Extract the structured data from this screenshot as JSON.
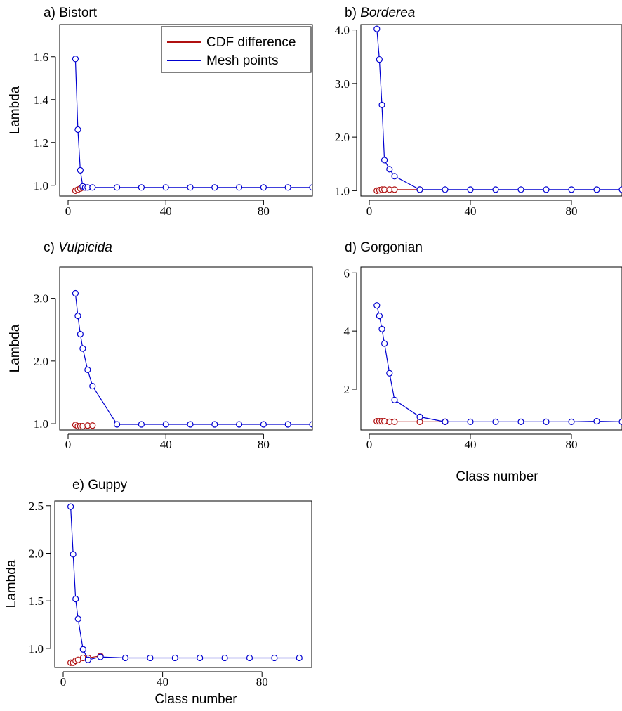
{
  "colors": {
    "cdf": "#b01010",
    "mesh": "#0000d0"
  },
  "legend": {
    "cdf_label": "CDF difference",
    "mesh_label": "Mesh points",
    "placement": "top-right of panel a"
  },
  "chart_data": [
    {
      "type": "line",
      "title_prefix": "a) ",
      "title_main": "Bistort",
      "title_italic": false,
      "ylabel": "Lambda",
      "xlabel": "",
      "xlim": [
        0,
        100
      ],
      "ylim": [
        0.95,
        1.75
      ],
      "xticks": [
        0,
        40,
        80
      ],
      "xtick_labels": [
        "0",
        "40",
        "80"
      ],
      "yticks": [
        1.0,
        1.2,
        1.4,
        1.6
      ],
      "ytick_labels": [
        "1.0",
        "1.2",
        "1.4",
        "1.6"
      ],
      "series": [
        {
          "name": "CDF difference",
          "x": [
            3,
            4,
            5,
            6,
            7
          ],
          "y": [
            0.975,
            0.98,
            0.985,
            0.99,
            0.99
          ]
        },
        {
          "name": "Mesh points",
          "x": [
            3,
            4,
            5,
            6,
            7,
            8,
            10,
            20,
            30,
            40,
            50,
            60,
            70,
            80,
            90,
            100
          ],
          "y": [
            1.59,
            1.26,
            1.07,
            0.995,
            0.99,
            0.99,
            0.99,
            0.99,
            0.99,
            0.99,
            0.99,
            0.99,
            0.99,
            0.99,
            0.99,
            0.99
          ]
        }
      ]
    },
    {
      "type": "line",
      "title_prefix": "b) ",
      "title_main": "Borderea",
      "title_italic": true,
      "ylabel": "",
      "xlabel": "",
      "xlim": [
        0,
        100
      ],
      "ylim": [
        0.9,
        4.1
      ],
      "xticks": [
        0,
        40,
        80
      ],
      "xtick_labels": [
        "0",
        "40",
        "80"
      ],
      "yticks": [
        1.0,
        2.0,
        3.0,
        4.0
      ],
      "ytick_labels": [
        "1.0",
        "2.0",
        "3.0",
        "4.0"
      ],
      "series": [
        {
          "name": "CDF difference",
          "x": [
            3,
            4,
            5,
            6,
            8,
            10,
            20
          ],
          "y": [
            1.0,
            1.01,
            1.02,
            1.02,
            1.02,
            1.02,
            1.02
          ]
        },
        {
          "name": "Mesh points",
          "x": [
            3,
            4,
            5,
            6,
            8,
            10,
            20,
            30,
            40,
            50,
            60,
            70,
            80,
            90,
            100
          ],
          "y": [
            4.02,
            3.45,
            2.6,
            1.57,
            1.4,
            1.27,
            1.02,
            1.02,
            1.02,
            1.02,
            1.02,
            1.02,
            1.02,
            1.02,
            1.02
          ]
        }
      ]
    },
    {
      "type": "line",
      "title_prefix": "c) ",
      "title_main": "Vulpicida",
      "title_italic": true,
      "ylabel": "Lambda",
      "xlabel": "",
      "xlim": [
        0,
        100
      ],
      "ylim": [
        0.9,
        3.5
      ],
      "xticks": [
        0,
        40,
        80
      ],
      "xtick_labels": [
        "0",
        "40",
        "80"
      ],
      "yticks": [
        1.0,
        2.0,
        3.0
      ],
      "ytick_labels": [
        "1.0",
        "2.0",
        "3.0"
      ],
      "series": [
        {
          "name": "CDF difference",
          "x": [
            3,
            4,
            5,
            6,
            8,
            10
          ],
          "y": [
            0.98,
            0.96,
            0.96,
            0.96,
            0.97,
            0.97
          ]
        },
        {
          "name": "Mesh points",
          "x": [
            3,
            4,
            5,
            6,
            8,
            10,
            20,
            30,
            40,
            50,
            60,
            70,
            80,
            90,
            100
          ],
          "y": [
            3.08,
            2.72,
            2.43,
            2.2,
            1.86,
            1.6,
            0.99,
            0.99,
            0.99,
            0.99,
            0.99,
            0.99,
            0.99,
            0.99,
            0.99
          ]
        }
      ]
    },
    {
      "type": "line",
      "title_prefix": "d) ",
      "title_main": "Gorgonian",
      "title_italic": false,
      "ylabel": "",
      "xlabel": "Class number",
      "xlim": [
        0,
        100
      ],
      "ylim": [
        0.6,
        6.2
      ],
      "xticks": [
        0,
        40,
        80
      ],
      "xtick_labels": [
        "0",
        "40",
        "80"
      ],
      "yticks": [
        2,
        4,
        6
      ],
      "ytick_labels": [
        "2",
        "4",
        "6"
      ],
      "series": [
        {
          "name": "CDF difference",
          "x": [
            3,
            4,
            5,
            6,
            8,
            10,
            20,
            30
          ],
          "y": [
            0.9,
            0.9,
            0.9,
            0.9,
            0.88,
            0.88,
            0.88,
            0.88
          ]
        },
        {
          "name": "Mesh points",
          "x": [
            3,
            4,
            5,
            6,
            8,
            10,
            20,
            30,
            40,
            50,
            60,
            70,
            80,
            90,
            100
          ],
          "y": [
            4.88,
            4.52,
            4.07,
            3.57,
            2.55,
            1.63,
            1.05,
            0.88,
            0.88,
            0.88,
            0.88,
            0.88,
            0.88,
            0.9,
            0.88
          ]
        }
      ]
    },
    {
      "type": "line",
      "title_prefix": "e) ",
      "title_main": "Guppy",
      "title_italic": false,
      "ylabel": "Lambda",
      "xlabel": "Class number",
      "xlim": [
        0,
        100
      ],
      "ylim": [
        0.8,
        2.55
      ],
      "xticks": [
        0,
        40,
        80
      ],
      "xtick_labels": [
        "0",
        "40",
        "80"
      ],
      "yticks": [
        1.0,
        1.5,
        2.0,
        2.5
      ],
      "ytick_labels": [
        "1.0",
        "1.5",
        "2.0",
        "2.5"
      ],
      "series": [
        {
          "name": "CDF difference",
          "x": [
            3,
            4,
            5,
            6,
            8,
            10,
            15
          ],
          "y": [
            0.85,
            0.85,
            0.87,
            0.88,
            0.9,
            0.9,
            0.92
          ]
        },
        {
          "name": "Mesh points",
          "x": [
            3,
            4,
            5,
            6,
            8,
            10,
            15,
            25,
            35,
            45,
            55,
            65,
            75,
            85,
            95
          ],
          "y": [
            2.49,
            1.99,
            1.52,
            1.31,
            0.99,
            0.88,
            0.91,
            0.9,
            0.9,
            0.9,
            0.9,
            0.9,
            0.9,
            0.9,
            0.9
          ]
        }
      ]
    }
  ]
}
